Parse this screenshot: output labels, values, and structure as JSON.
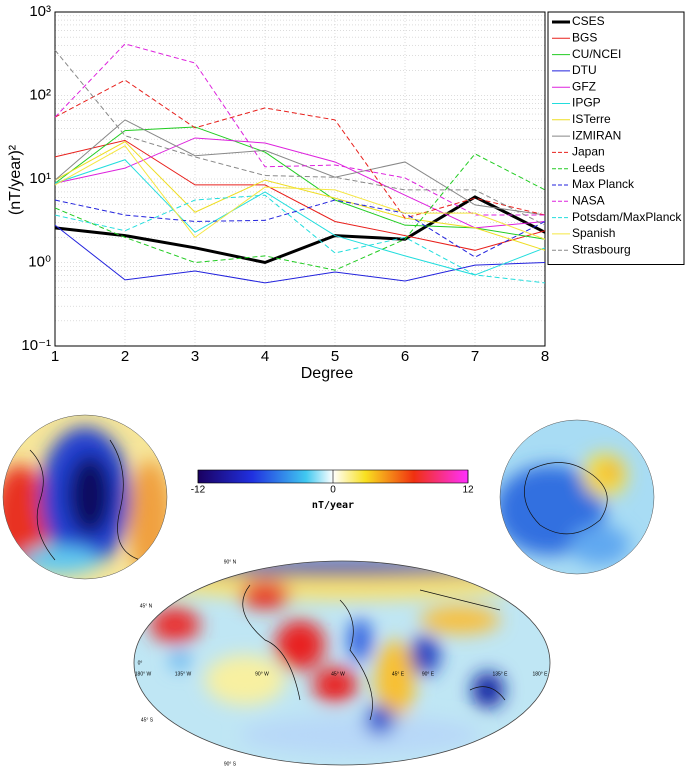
{
  "chart_data": {
    "type": "line",
    "xlabel": "Degree",
    "ylabel": "(nT/year)²",
    "x": [
      1,
      2,
      3,
      4,
      5,
      6,
      7,
      8
    ],
    "xlim": [
      1,
      8
    ],
    "xticks": [
      1,
      2,
      3,
      4,
      5,
      6,
      7,
      8
    ],
    "ylim": [
      0.1,
      1000
    ],
    "log_y": true,
    "grid": true,
    "legend": "right",
    "yticks": [
      {
        "value": 0.1,
        "label": "10⁻¹"
      },
      {
        "value": 1,
        "label": "10⁰"
      },
      {
        "value": 10,
        "label": "10¹"
      },
      {
        "value": 100,
        "label": "10²"
      },
      {
        "value": 1000,
        "label": "10³"
      }
    ],
    "series": [
      {
        "name": "CSES",
        "color": "#000000",
        "linestyle": "solid",
        "linewidth": 3,
        "values": [
          2.6,
          2.1,
          1.5,
          1.0,
          2.1,
          1.9,
          6.1,
          2.3
        ]
      },
      {
        "name": "BGS",
        "color": "#e8201c",
        "linestyle": "solid",
        "linewidth": 1,
        "values": [
          18.4,
          29,
          8.5,
          8.5,
          3.1,
          2.1,
          1.4,
          2.4
        ]
      },
      {
        "name": "CU/NCEI",
        "color": "#22cc22",
        "linestyle": "solid",
        "linewidth": 1,
        "values": [
          8.9,
          38,
          42,
          21,
          5.6,
          2.8,
          2.6,
          1.9
        ]
      },
      {
        "name": "DTU",
        "color": "#2222dd",
        "linestyle": "solid",
        "linewidth": 1,
        "values": [
          2.8,
          0.62,
          0.79,
          0.57,
          0.77,
          0.6,
          0.93,
          1.0
        ]
      },
      {
        "name": "GFZ",
        "color": "#dd22dd",
        "linestyle": "solid",
        "linewidth": 1,
        "values": [
          8.9,
          13.5,
          31,
          27,
          16,
          6.4,
          2.6,
          3.1
        ]
      },
      {
        "name": "IPGP",
        "color": "#22dddd",
        "linestyle": "solid",
        "linewidth": 1,
        "values": [
          8.9,
          17,
          2.3,
          7,
          2.1,
          1.2,
          0.71,
          1.5
        ]
      },
      {
        "name": "ISTerre",
        "color": "#eedd22",
        "linestyle": "solid",
        "linewidth": 1,
        "values": [
          9.7,
          28,
          4,
          9.7,
          5.9,
          3.4,
          2.6,
          1.4
        ]
      },
      {
        "name": "IZMIRAN",
        "color": "#888888",
        "linestyle": "solid",
        "linewidth": 1,
        "values": [
          9.7,
          51,
          19,
          22,
          10.5,
          16,
          4.9,
          3.7
        ]
      },
      {
        "name": "Japan",
        "color": "#e8201c",
        "linestyle": "dashed",
        "linewidth": 1,
        "values": [
          55,
          153,
          41,
          71,
          51,
          3.4,
          5.9,
          3.7
        ]
      },
      {
        "name": "Leeds",
        "color": "#22cc22",
        "linestyle": "dashed",
        "linewidth": 1,
        "values": [
          4.5,
          2.0,
          1.0,
          1.2,
          0.81,
          1.9,
          20,
          7.4
        ]
      },
      {
        "name": "Max Planck",
        "color": "#2222dd",
        "linestyle": "dashed",
        "linewidth": 1,
        "values": [
          5.6,
          3.7,
          3.1,
          3.2,
          5.6,
          3.9,
          1.16,
          3.1
        ]
      },
      {
        "name": "NASA",
        "color": "#dd22dd",
        "linestyle": "dashed",
        "linewidth": 1,
        "values": [
          55,
          415,
          245,
          14,
          14.7,
          10.3,
          3.7,
          3.7
        ]
      },
      {
        "name": "Potsdam/MaxPlanck",
        "color": "#22dddd",
        "linestyle": "dashed",
        "linewidth": 1,
        "values": [
          3.7,
          2.4,
          5.6,
          6.4,
          1.3,
          2.0,
          0.71,
          0.57
        ]
      },
      {
        "name": "Spanish",
        "color": "#f5e642",
        "linestyle": "solid",
        "linewidth": 1,
        "values": [
          8.5,
          25,
          2.0,
          8.0,
          7.4,
          3.9,
          3.9,
          1.9
        ]
      },
      {
        "name": "Strasbourg",
        "color": "#888888",
        "linestyle": "dashed",
        "linewidth": 1,
        "values": [
          350,
          33,
          18.4,
          11,
          10.5,
          7.4,
          7.4,
          2.8
        ]
      }
    ]
  },
  "colorbar": {
    "label": "nT/year",
    "lim": [
      -12,
      12
    ],
    "ticks": [
      -12,
      0,
      12
    ]
  },
  "map": {
    "lon_labels": [
      "180° W",
      "135° W",
      "90° W",
      "45° W",
      "45° E",
      "90° E",
      "135° E",
      "180° E"
    ],
    "lat_labels": [
      "90° N",
      "45° N",
      "0°",
      "45° S",
      "90° S"
    ]
  }
}
